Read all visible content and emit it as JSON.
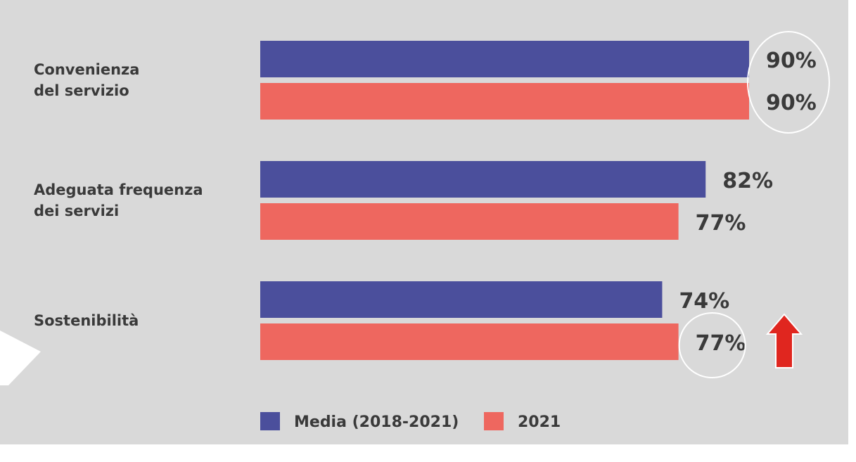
{
  "chart_data": {
    "type": "bar",
    "orientation": "horizontal",
    "categories": [
      [
        "Convenienza",
        "del servizio"
      ],
      [
        "Adeguata frequenza",
        "dei servizi"
      ],
      [
        "Sostenibilità"
      ]
    ],
    "series": [
      {
        "name": "Media (2018-2021)",
        "values": [
          90,
          82,
          74
        ],
        "color": "#4b4f9c"
      },
      {
        "name": "2021",
        "values": [
          90,
          77,
          77
        ],
        "color": "#ee675f"
      }
    ],
    "value_labels": [
      [
        "90%",
        "82%",
        "74%"
      ],
      [
        "90%",
        "77%",
        "77%"
      ]
    ],
    "xlim": [
      0,
      100
    ],
    "highlight_circles": [
      {
        "category": 0,
        "series": "both"
      },
      {
        "category": 2,
        "series": 1
      }
    ],
    "annotations": [
      {
        "type": "arrow-up",
        "icon": "red-up-arrow-icon",
        "category": 2,
        "color": "#e0261f"
      }
    ],
    "legend": {
      "position": "bottom-left"
    }
  }
}
